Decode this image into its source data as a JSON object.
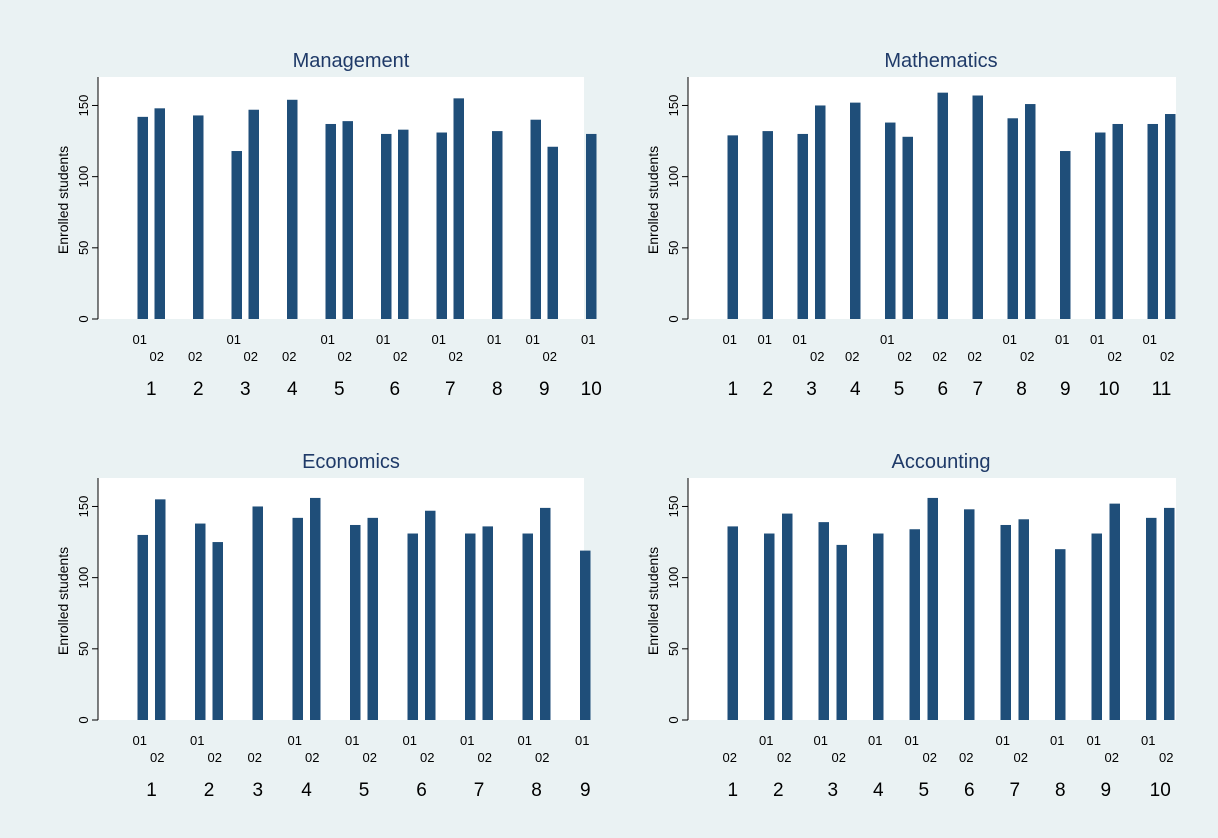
{
  "chart_data": [
    {
      "type": "bar",
      "title": "Management",
      "ylabel": "Enrolled students",
      "ylim": [
        0,
        170
      ],
      "yticks": [
        0,
        50,
        100,
        150
      ],
      "grid": false,
      "groups": [
        {
          "label": "1",
          "bars": [
            {
              "session": "01",
              "value": 142
            },
            {
              "session": "02",
              "value": 148
            }
          ]
        },
        {
          "label": "2",
          "bars": [
            {
              "session": "02",
              "value": 143
            }
          ]
        },
        {
          "label": "3",
          "bars": [
            {
              "session": "01",
              "value": 118
            },
            {
              "session": "02",
              "value": 147
            }
          ]
        },
        {
          "label": "4",
          "bars": [
            {
              "session": "02",
              "value": 154
            }
          ]
        },
        {
          "label": "5",
          "bars": [
            {
              "session": "01",
              "value": 137
            },
            {
              "session": "02",
              "value": 139
            }
          ]
        },
        {
          "label": "6",
          "bars": [
            {
              "session": "01",
              "value": 130
            },
            {
              "session": "02",
              "value": 133
            }
          ]
        },
        {
          "label": "7",
          "bars": [
            {
              "session": "01",
              "value": 131
            },
            {
              "session": "02",
              "value": 155
            }
          ]
        },
        {
          "label": "8",
          "bars": [
            {
              "session": "01",
              "value": 132
            }
          ]
        },
        {
          "label": "9",
          "bars": [
            {
              "session": "01",
              "value": 140
            },
            {
              "session": "02",
              "value": 121
            }
          ]
        },
        {
          "label": "10",
          "bars": [
            {
              "session": "01",
              "value": 130
            }
          ]
        }
      ]
    },
    {
      "type": "bar",
      "title": "Mathematics",
      "ylabel": "Enrolled students",
      "ylim": [
        0,
        170
      ],
      "yticks": [
        0,
        50,
        100,
        150
      ],
      "grid": false,
      "groups": [
        {
          "label": "1",
          "bars": [
            {
              "session": "01",
              "value": 129
            }
          ]
        },
        {
          "label": "2",
          "bars": [
            {
              "session": "01",
              "value": 132
            }
          ]
        },
        {
          "label": "3",
          "bars": [
            {
              "session": "01",
              "value": 130
            },
            {
              "session": "02",
              "value": 150
            }
          ]
        },
        {
          "label": "4",
          "bars": [
            {
              "session": "02",
              "value": 152
            }
          ]
        },
        {
          "label": "5",
          "bars": [
            {
              "session": "01",
              "value": 138
            },
            {
              "session": "02",
              "value": 128
            }
          ]
        },
        {
          "label": "6",
          "bars": [
            {
              "session": "02",
              "value": 159
            }
          ]
        },
        {
          "label": "7",
          "bars": [
            {
              "session": "02",
              "value": 157
            }
          ]
        },
        {
          "label": "8",
          "bars": [
            {
              "session": "01",
              "value": 141
            },
            {
              "session": "02",
              "value": 151
            }
          ]
        },
        {
          "label": "9",
          "bars": [
            {
              "session": "01",
              "value": 118
            }
          ]
        },
        {
          "label": "10",
          "bars": [
            {
              "session": "01",
              "value": 131
            },
            {
              "session": "02",
              "value": 137
            }
          ]
        },
        {
          "label": "11",
          "bars": [
            {
              "session": "01",
              "value": 137
            },
            {
              "session": "02",
              "value": 144
            }
          ]
        }
      ]
    },
    {
      "type": "bar",
      "title": "Economics",
      "ylabel": "Enrolled students",
      "ylim": [
        0,
        170
      ],
      "yticks": [
        0,
        50,
        100,
        150
      ],
      "grid": false,
      "groups": [
        {
          "label": "1",
          "bars": [
            {
              "session": "01",
              "value": 130
            },
            {
              "session": "02",
              "value": 155
            }
          ]
        },
        {
          "label": "2",
          "bars": [
            {
              "session": "01",
              "value": 138
            },
            {
              "session": "02",
              "value": 125
            }
          ]
        },
        {
          "label": "3",
          "bars": [
            {
              "session": "02",
              "value": 150
            }
          ]
        },
        {
          "label": "4",
          "bars": [
            {
              "session": "01",
              "value": 142
            },
            {
              "session": "02",
              "value": 156
            }
          ]
        },
        {
          "label": "5",
          "bars": [
            {
              "session": "01",
              "value": 137
            },
            {
              "session": "02",
              "value": 142
            }
          ]
        },
        {
          "label": "6",
          "bars": [
            {
              "session": "01",
              "value": 131
            },
            {
              "session": "02",
              "value": 147
            }
          ]
        },
        {
          "label": "7",
          "bars": [
            {
              "session": "01",
              "value": 131
            },
            {
              "session": "02",
              "value": 136
            }
          ]
        },
        {
          "label": "8",
          "bars": [
            {
              "session": "01",
              "value": 131
            },
            {
              "session": "02",
              "value": 149
            }
          ]
        },
        {
          "label": "9",
          "bars": [
            {
              "session": "01",
              "value": 119
            }
          ]
        }
      ]
    },
    {
      "type": "bar",
      "title": "Accounting",
      "ylabel": "Enrolled students",
      "ylim": [
        0,
        170
      ],
      "yticks": [
        0,
        50,
        100,
        150
      ],
      "grid": false,
      "groups": [
        {
          "label": "1",
          "bars": [
            {
              "session": "02",
              "value": 136
            }
          ]
        },
        {
          "label": "2",
          "bars": [
            {
              "session": "01",
              "value": 131
            },
            {
              "session": "02",
              "value": 145
            }
          ]
        },
        {
          "label": "3",
          "bars": [
            {
              "session": "01",
              "value": 139
            },
            {
              "session": "02",
              "value": 123
            }
          ]
        },
        {
          "label": "4",
          "bars": [
            {
              "session": "01",
              "value": 131
            }
          ]
        },
        {
          "label": "5",
          "bars": [
            {
              "session": "01",
              "value": 134
            },
            {
              "session": "02",
              "value": 156
            }
          ]
        },
        {
          "label": "6",
          "bars": [
            {
              "session": "02",
              "value": 148
            }
          ]
        },
        {
          "label": "7",
          "bars": [
            {
              "session": "01",
              "value": 137
            },
            {
              "session": "02",
              "value": 141
            }
          ]
        },
        {
          "label": "8",
          "bars": [
            {
              "session": "01",
              "value": 120
            }
          ]
        },
        {
          "label": "9",
          "bars": [
            {
              "session": "01",
              "value": 131
            },
            {
              "session": "02",
              "value": 152
            }
          ]
        },
        {
          "label": "10",
          "bars": [
            {
              "session": "01",
              "value": 142
            },
            {
              "session": "02",
              "value": 149
            }
          ]
        }
      ]
    }
  ],
  "colors": {
    "bar": "#1f4e79",
    "panel_background": "#eaf2f3",
    "plot_background": "#ffffff",
    "title": "#1f3a68"
  }
}
